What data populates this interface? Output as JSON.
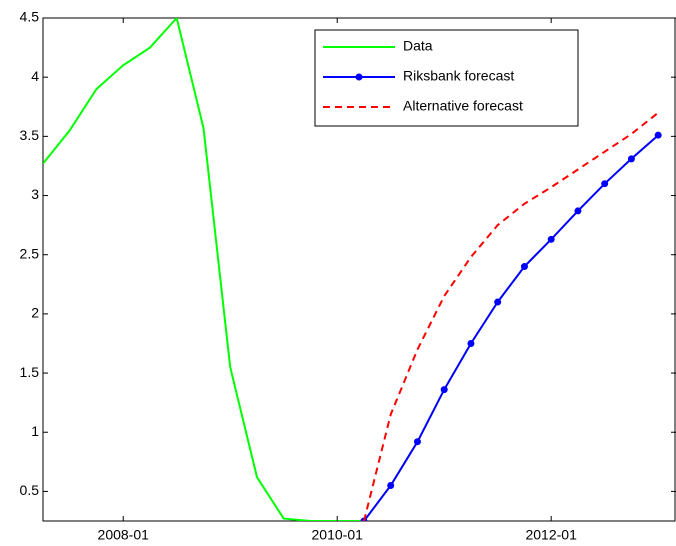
{
  "chart_data": {
    "type": "line",
    "xlim": [
      "2007-04",
      "2013-03"
    ],
    "xticks": [
      "2008-01",
      "2010-01",
      "2012-01"
    ],
    "ylim": [
      0.25,
      4.5
    ],
    "yticks": [
      0.5,
      1,
      1.5,
      2,
      2.5,
      3,
      3.5,
      4,
      4.5
    ],
    "legend": "upper-right",
    "series": [
      {
        "name": "Data",
        "color": "#00ff00",
        "style": "solid",
        "markers": false,
        "x": [
          "2007-04",
          "2007-07",
          "2007-10",
          "2008-01",
          "2008-04",
          "2008-07",
          "2008-10",
          "2009-01",
          "2009-04",
          "2009-07",
          "2009-10",
          "2010-01",
          "2010-04"
        ],
        "values": [
          3.27,
          3.55,
          3.9,
          4.1,
          4.25,
          4.5,
          3.57,
          1.55,
          0.62,
          0.27,
          0.25,
          0.25,
          0.25
        ]
      },
      {
        "name": "Riksbank forecast",
        "color": "#0000ff",
        "style": "solid",
        "markers": true,
        "x": [
          "2010-04",
          "2010-07",
          "2010-10",
          "2011-01",
          "2011-04",
          "2011-07",
          "2011-10",
          "2012-01",
          "2012-04",
          "2012-07",
          "2012-10",
          "2013-01"
        ],
        "values": [
          0.25,
          0.55,
          0.92,
          1.36,
          1.75,
          2.1,
          2.4,
          2.63,
          2.87,
          3.1,
          3.31,
          3.51
        ]
      },
      {
        "name": "Alternative forecast",
        "color": "#ff0000",
        "style": "dashed",
        "markers": false,
        "x": [
          "2010-04",
          "2010-07",
          "2010-10",
          "2011-01",
          "2011-04",
          "2011-07",
          "2011-10",
          "2012-01",
          "2012-04",
          "2012-07",
          "2012-10",
          "2013-01"
        ],
        "values": [
          0.25,
          1.15,
          1.7,
          2.15,
          2.48,
          2.75,
          2.93,
          3.07,
          3.22,
          3.37,
          3.52,
          3.7
        ]
      }
    ]
  }
}
